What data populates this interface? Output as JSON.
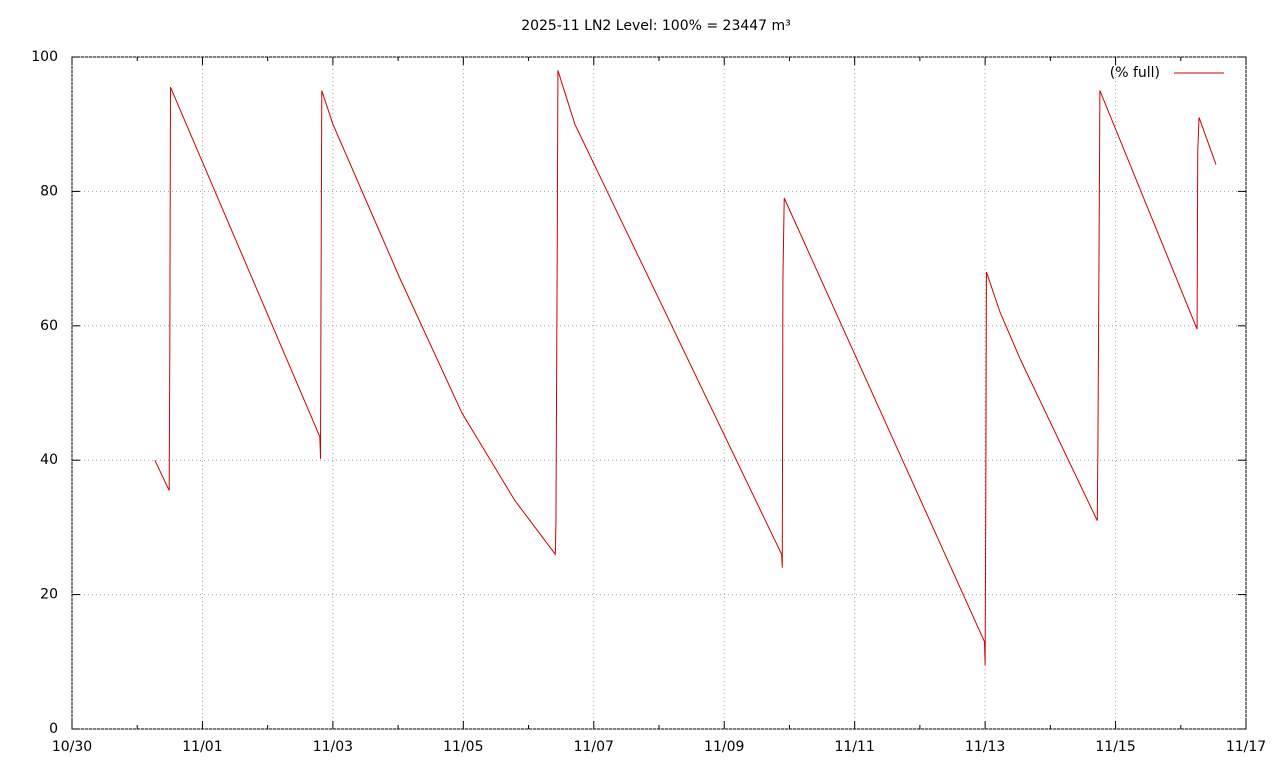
{
  "chart_data": {
    "type": "line",
    "title": "2025-11 LN2 Level: 100% = 23447 m³",
    "x": [
      1.27,
      1.49,
      1.5,
      1.51,
      3.8,
      3.81,
      3.82,
      3.83,
      4.0,
      5.03,
      5.98,
      6.79,
      7.41,
      7.42,
      7.44,
      7.45,
      7.71,
      10.88,
      10.89,
      10.9,
      10.92,
      13.99,
      14.0,
      14.01,
      14.02,
      14.23,
      14.54,
      15.72,
      15.73,
      15.75,
      15.76,
      17.25,
      17.26,
      17.28,
      17.54
    ],
    "series": [
      {
        "name": "(% full)",
        "color": "#cc0000",
        "values": [
          40,
          35.5,
          57,
          95.5,
          43.5,
          40.2,
          70,
          95,
          90,
          67,
          47,
          34,
          26,
          31,
          72,
          98,
          90,
          26,
          24,
          67,
          79,
          13,
          9.5,
          33,
          68,
          62,
          55,
          31,
          43,
          77,
          95,
          59.5,
          86,
          91,
          84
        ]
      }
    ],
    "xlim": [
      0,
      18
    ],
    "xticks": [
      {
        "value": 0,
        "label": "10/30"
      },
      {
        "value": 2,
        "label": "11/01"
      },
      {
        "value": 4,
        "label": "11/03"
      },
      {
        "value": 6,
        "label": "11/05"
      },
      {
        "value": 8,
        "label": "11/07"
      },
      {
        "value": 10,
        "label": "11/09"
      },
      {
        "value": 12,
        "label": "11/11"
      },
      {
        "value": 14,
        "label": "11/13"
      },
      {
        "value": 16,
        "label": "11/15"
      },
      {
        "value": 18,
        "label": "11/17"
      }
    ],
    "ylim": [
      0,
      100
    ],
    "yticks": [
      0,
      20,
      40,
      60,
      80,
      100
    ],
    "grid": true,
    "legend": "top-right"
  }
}
